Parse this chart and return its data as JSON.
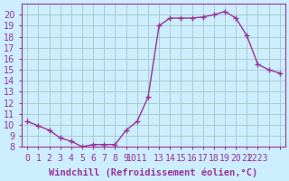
{
  "xlabel": "Windchill (Refroidissement éolien,°C)",
  "ylabel": "",
  "x_values": [
    0,
    1,
    2,
    3,
    4,
    5,
    6,
    7,
    8,
    9,
    10,
    11,
    12,
    13,
    14,
    15,
    16,
    17,
    18,
    19,
    20,
    21,
    22,
    23
  ],
  "y_values": [
    10.3,
    9.9,
    9.5,
    8.8,
    8.5,
    8.0,
    8.2,
    8.2,
    8.2,
    9.5,
    10.3,
    12.5,
    19.0,
    19.7,
    19.7,
    19.7,
    19.8,
    20.0,
    20.3,
    19.7,
    18.1,
    15.5,
    15.0,
    14.7
  ],
  "line_color": "#993399",
  "marker_color": "#993399",
  "bg_color": "#cceeff",
  "grid_color": "#aacccc",
  "axis_color": "#993399",
  "tick_label_color": "#993399",
  "xlabel_color": "#993399",
  "ylim": [
    8,
    21
  ],
  "yticks": [
    8,
    9,
    10,
    11,
    12,
    13,
    14,
    15,
    16,
    17,
    18,
    19,
    20
  ],
  "xtick_labels": [
    "0",
    "1",
    "2",
    "3",
    "4",
    "5",
    "6",
    "7",
    "8",
    "9",
    "1011",
    "",
    "13",
    "14",
    "15",
    "16",
    "17",
    "18",
    "19",
    "20",
    "21",
    "2223",
    "",
    ""
  ],
  "font_size": 7.0,
  "xlabel_fontsize": 7.5
}
